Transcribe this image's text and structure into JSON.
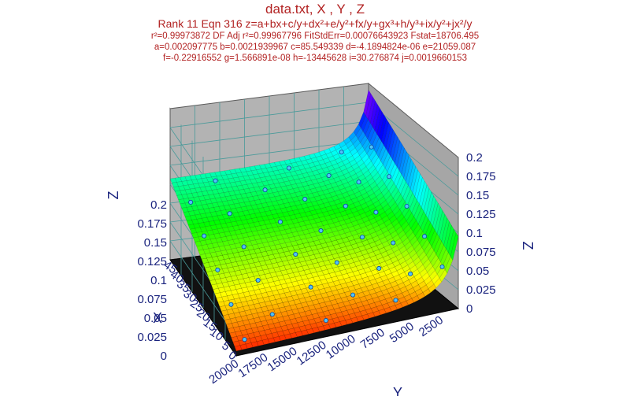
{
  "header": {
    "title": "data.txt, X , Y , Z",
    "equation": "Rank 11  Eqn 316  z=a+bx+c/y+dx²+e/y²+fx/y+gx³+h/y³+ix/y²+jx²/y",
    "stats": "r²=0.99973872  DF Adj r²=0.99967796  FitStdErr=0.00076643923  Fstat=18706.495",
    "coef1": "a=0.002097775 b=0.0021939967 c=85.549339 d=-4.1894824e-06 e=21059.087",
    "coef2": "f=-0.22916552 g=1.566891e-08 h=-13445628 i=30.276874 j=0.0019660153"
  },
  "chart_data": {
    "type": "surface",
    "title": "data.txt, X , Y , Z",
    "xlabel": "X",
    "ylabel": "Y",
    "zlabel": "Z",
    "xlim": [
      0,
      50
    ],
    "ylim": [
      1000,
      20000
    ],
    "zlim": [
      0,
      0.2
    ],
    "x_ticks": [
      "45",
      "40",
      "35",
      "30",
      "25",
      "20",
      "15",
      "10",
      "5",
      "0"
    ],
    "y_ticks": [
      "20000",
      "17500",
      "15000",
      "12500",
      "10000",
      "7500",
      "5000",
      "2500"
    ],
    "z_ticks": [
      "0",
      "0.025",
      "0.05",
      "0.075",
      "0.1",
      "0.125",
      "0.15",
      "0.175",
      "0.2"
    ],
    "coefficients": {
      "a": 0.002097775,
      "b": 0.0021939967,
      "c": 85.549339,
      "d": -4.1894824e-06,
      "e": 21059.087,
      "f": -0.22916552,
      "g": 1.566891e-08,
      "h": -13445628,
      "i": 30.276874,
      "j": 0.0019660153
    },
    "grid": true,
    "colormap": "rainbow"
  }
}
